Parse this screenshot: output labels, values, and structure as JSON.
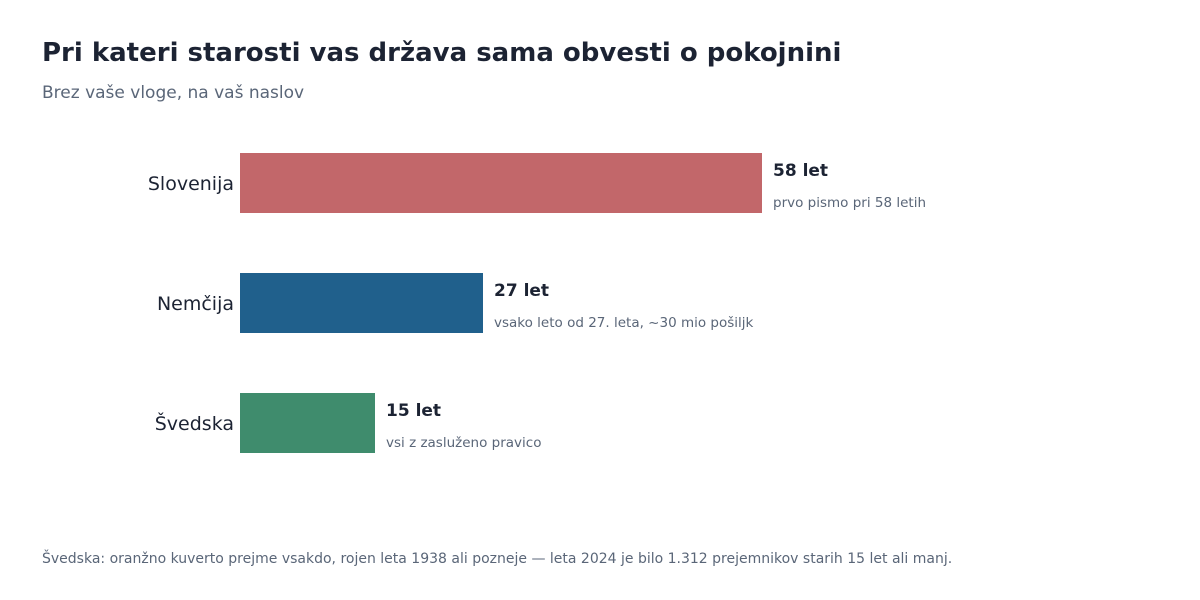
{
  "header": {
    "title": "Pri kateri starosti vas država sama obvesti o pokojnini",
    "subtitle": "Brez vaše vloge, na vaš naslov"
  },
  "footnote": "Švedska: oranžno kuverto prejme vsakdo, rojen leta 1938 ali pozneje — leta 2024 je bilo 1.312 prejemnikov starih 15 let ali manj.",
  "chart_data": {
    "type": "bar",
    "orientation": "horizontal",
    "title": "Pri kateri starosti vas država sama obvesti o pokojnini",
    "subtitle": "Brez vaše vloge, na vaš naslov",
    "categories": [
      "Slovenija",
      "Nemčija",
      "Švedska"
    ],
    "values": [
      58,
      27,
      15
    ],
    "value_labels": [
      "58 let",
      "27 let",
      "15 let"
    ],
    "annotations": [
      "prvo pismo pri 58 letih",
      "vsako leto od 27. leta, ~30 mio pošiljk",
      "vsi z zasluženo pravico"
    ],
    "colors": [
      "#c2676a",
      "#20608c",
      "#3f8c6d"
    ],
    "grid": false,
    "legend": "none"
  }
}
